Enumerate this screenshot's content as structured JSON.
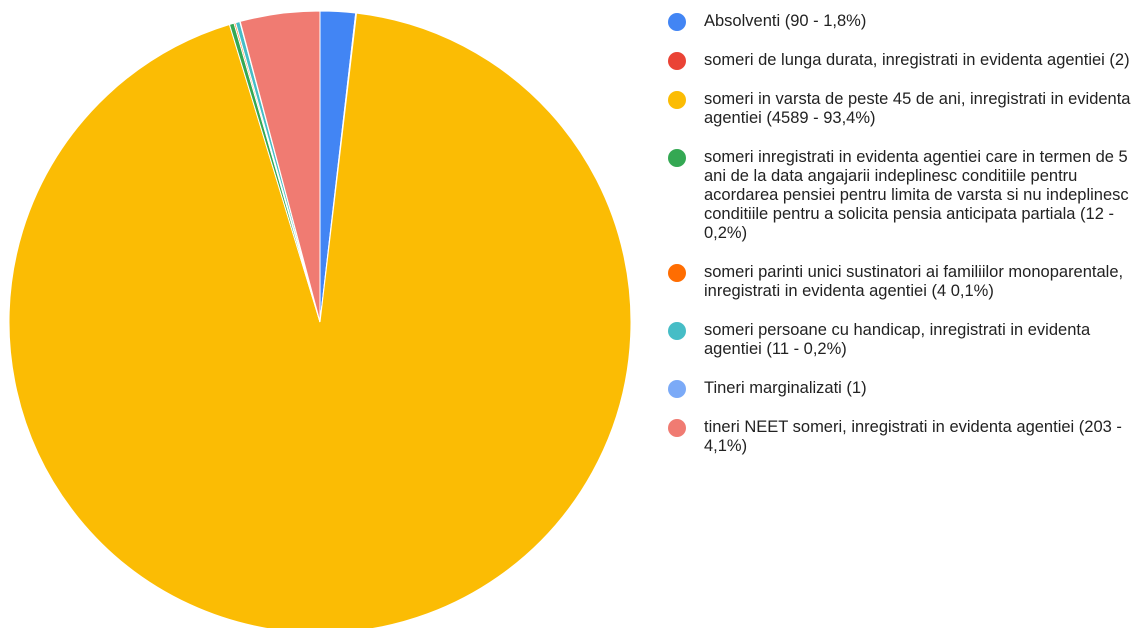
{
  "chart_data": {
    "type": "pie",
    "categories": [
      "Absolventi (90 - 1,8%)",
      "someri de lunga durata, inregistrati in evidenta agentiei (2)",
      "someri in varsta de peste 45 de ani, inregistrati in evidenta agentiei (4589 - 93,4%)",
      "someri inregistrati in evidenta agentiei care in termen de 5 ani de la data angajarii indeplinesc conditiile pentru acordarea pensiei pentru limita de varsta si nu indeplinesc conditiile pentru a solicita pensia anticipata partiala (12 - 0,2%)",
      "someri parinti unici sustinatori ai familiilor monoparentale, inregistrati in evidenta agentiei (4 0,1%)",
      "someri persoane cu handicap, inregistrati in evidenta agentiei (11 - 0,2%)",
      "Tineri marginalizati (1)",
      "tineri NEET someri, inregistrati in evidenta agentiei (203 - 4,1%)"
    ],
    "values": [
      90,
      2,
      4589,
      12,
      4,
      11,
      1,
      203
    ],
    "colors": [
      "#4285f4",
      "#ea4335",
      "#fbbc04",
      "#34a853",
      "#ff6d01",
      "#46bdc6",
      "#7baaf7",
      "#f07b72"
    ],
    "legend": "right"
  }
}
